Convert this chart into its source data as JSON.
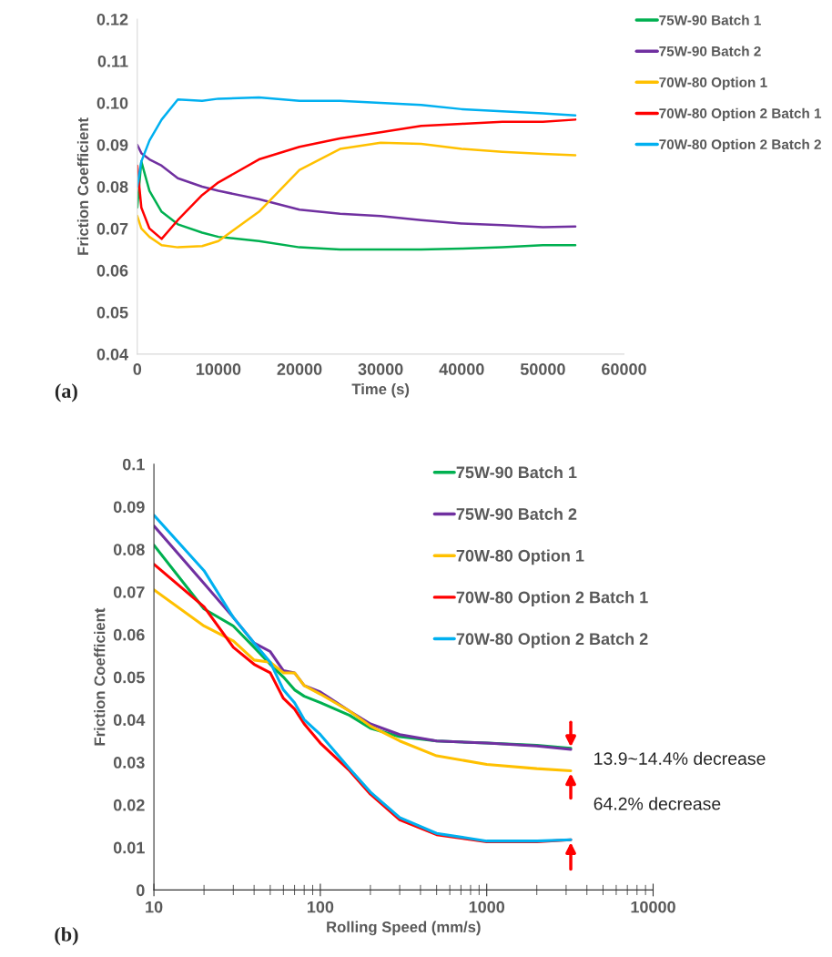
{
  "chart_data": [
    {
      "type": "line",
      "title": "(a)",
      "xlabel": "Time (s)",
      "ylabel": "Friction Coefficient",
      "xlim": [
        0,
        60000
      ],
      "xticks": [
        0,
        10000,
        20000,
        30000,
        40000,
        50000,
        60000
      ],
      "ylim": [
        0.04,
        0.12
      ],
      "yticks": [
        {
          "value": 0.04,
          "label": "0.04"
        },
        {
          "value": 0.05,
          "label": "0.05"
        },
        {
          "value": 0.06,
          "label": "0.06"
        },
        {
          "value": 0.07,
          "label": "0.07"
        },
        {
          "value": 0.08,
          "label": "0.08"
        },
        {
          "value": 0.09,
          "label": "0.09"
        },
        {
          "value": 0.1,
          "label": "0.10"
        },
        {
          "value": 0.11,
          "label": "0.11"
        },
        {
          "value": 0.12,
          "label": "0.12"
        }
      ],
      "grid": false,
      "legend": "top right",
      "x": [
        0,
        500,
        1500,
        3000,
        5000,
        8000,
        10000,
        15000,
        20000,
        25000,
        30000,
        35000,
        40000,
        45000,
        50000,
        54000
      ],
      "series": [
        {
          "name": "75W-90 Batch 1",
          "color": "#00b050",
          "values": [
            0.075,
            0.086,
            0.079,
            0.074,
            0.071,
            0.069,
            0.068,
            0.067,
            0.0655,
            0.065,
            0.065,
            0.065,
            0.0652,
            0.0655,
            0.066,
            0.066
          ]
        },
        {
          "name": "75W-90 Batch 2",
          "color": "#7030a0",
          "values": [
            0.09,
            0.088,
            0.0865,
            0.085,
            0.082,
            0.08,
            0.079,
            0.077,
            0.0745,
            0.0735,
            0.073,
            0.072,
            0.0712,
            0.0708,
            0.0703,
            0.0705
          ]
        },
        {
          "name": "70W-80 Option 1",
          "color": "#ffc000",
          "values": [
            0.073,
            0.07,
            0.068,
            0.066,
            0.0655,
            0.0658,
            0.067,
            0.074,
            0.084,
            0.089,
            0.0905,
            0.0902,
            0.089,
            0.0883,
            0.0878,
            0.0875
          ]
        },
        {
          "name": "70W-80 Option 2 Batch 1",
          "color": "#ff0000",
          "values": [
            0.085,
            0.075,
            0.07,
            0.0675,
            0.072,
            0.078,
            0.081,
            0.0865,
            0.0895,
            0.0915,
            0.093,
            0.0945,
            0.095,
            0.0955,
            0.0955,
            0.096
          ]
        },
        {
          "name": "70W-80 Option 2 Batch 2",
          "color": "#00b0f0",
          "values": [
            0.08,
            0.086,
            0.091,
            0.096,
            0.1008,
            0.1005,
            0.101,
            0.1013,
            0.1005,
            0.1005,
            0.1,
            0.0995,
            0.0985,
            0.098,
            0.0975,
            0.097
          ]
        }
      ]
    },
    {
      "type": "line",
      "title": "(b)",
      "xlabel": "Rolling Speed (mm/s)",
      "ylabel": "Friction Coefficient",
      "log": "x",
      "xlim": [
        10,
        10000
      ],
      "xticks": [
        10,
        100,
        1000,
        10000
      ],
      "ylim": [
        0,
        0.1
      ],
      "yticks": [
        0,
        0.01,
        0.02,
        0.03,
        0.04,
        0.05,
        0.06,
        0.07,
        0.08,
        0.09,
        0.1
      ],
      "grid": false,
      "legend": "top right",
      "x": [
        10,
        20,
        30,
        40,
        50,
        60,
        70,
        80,
        100,
        150,
        200,
        300,
        500,
        1000,
        2000,
        3200
      ],
      "series": [
        {
          "name": "75W-90 Batch 1",
          "color": "#00b050",
          "values": [
            0.081,
            0.066,
            0.062,
            0.057,
            0.053,
            0.05,
            0.047,
            0.0455,
            0.044,
            0.041,
            0.038,
            0.036,
            0.035,
            0.0345,
            0.034,
            0.0333
          ]
        },
        {
          "name": "75W-90 Batch 2",
          "color": "#7030a0",
          "values": [
            0.0855,
            0.072,
            0.064,
            0.058,
            0.056,
            0.0515,
            0.051,
            0.048,
            0.0465,
            0.042,
            0.039,
            0.0365,
            0.035,
            0.0345,
            0.0338,
            0.033
          ]
        },
        {
          "name": "70W-80 Option 1",
          "color": "#ffc000",
          "values": [
            0.0705,
            0.062,
            0.0585,
            0.054,
            0.0535,
            0.051,
            0.051,
            0.048,
            0.046,
            0.042,
            0.0385,
            0.035,
            0.0315,
            0.0295,
            0.0285,
            0.028
          ]
        },
        {
          "name": "70W-80 Option 2 Batch 1",
          "color": "#ff0000",
          "values": [
            0.0765,
            0.0665,
            0.057,
            0.053,
            0.051,
            0.045,
            0.0425,
            0.039,
            0.0345,
            0.028,
            0.0225,
            0.0165,
            0.013,
            0.0113,
            0.0113,
            0.0118
          ]
        },
        {
          "name": "70W-80 Option 2 Batch 2",
          "color": "#00b0f0",
          "values": [
            0.088,
            0.075,
            0.064,
            0.058,
            0.0535,
            0.047,
            0.044,
            0.04,
            0.0365,
            0.0285,
            0.023,
            0.017,
            0.0133,
            0.0115,
            0.0115,
            0.0118
          ]
        }
      ],
      "annotations": [
        "13.9~14.4% decrease",
        "64.2% decrease"
      ]
    }
  ]
}
